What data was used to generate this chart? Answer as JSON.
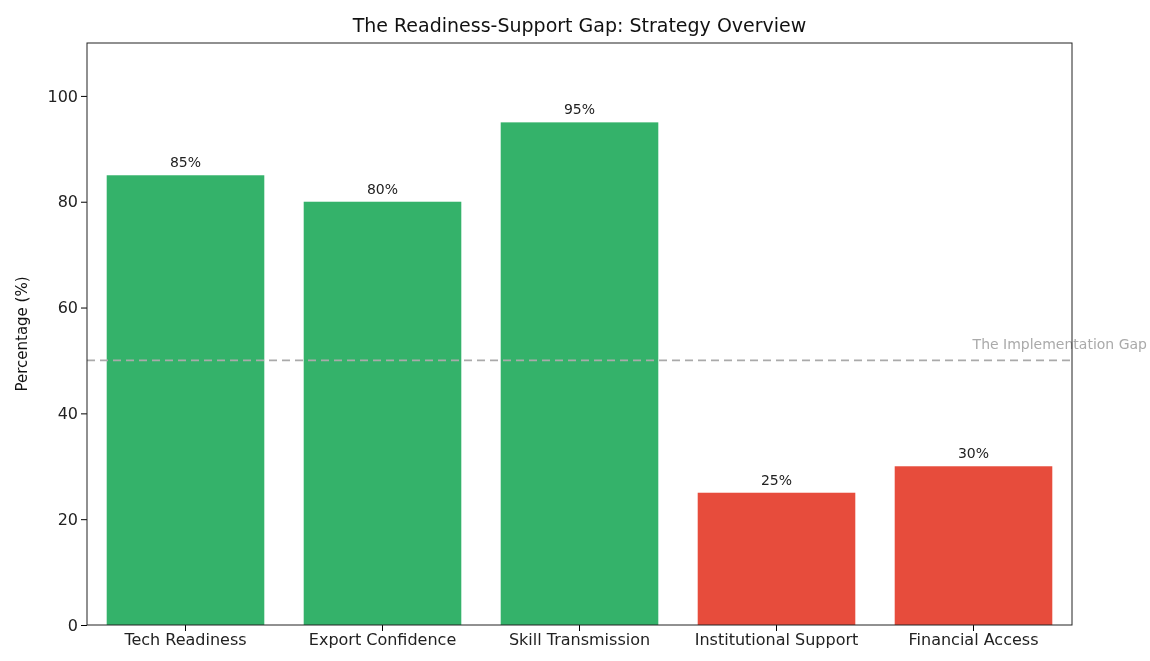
{
  "chart_data": {
    "type": "bar",
    "title": "The Readiness-Support Gap: Strategy Overview",
    "ylabel": "Percentage (%)",
    "categories": [
      "Tech Readiness",
      "Export Confidence",
      "Skill Transmission",
      "Institutional Support",
      "Financial Access"
    ],
    "values": [
      85,
      80,
      95,
      25,
      30
    ],
    "colors": [
      "#34b26a",
      "#34b26a",
      "#34b26a",
      "#e74c3c",
      "#e74c3c"
    ],
    "value_labels": [
      "85%",
      "80%",
      "95%",
      "25%",
      "30%"
    ],
    "ylim": [
      0,
      110
    ],
    "yticks": [
      0,
      20,
      40,
      60,
      80,
      100
    ],
    "grid": false,
    "ref_lines": [
      {
        "axis": "y",
        "value": 50,
        "label": "The Implementation Gap",
        "color": "#aaaaaa",
        "line_style": "dashed"
      }
    ]
  }
}
